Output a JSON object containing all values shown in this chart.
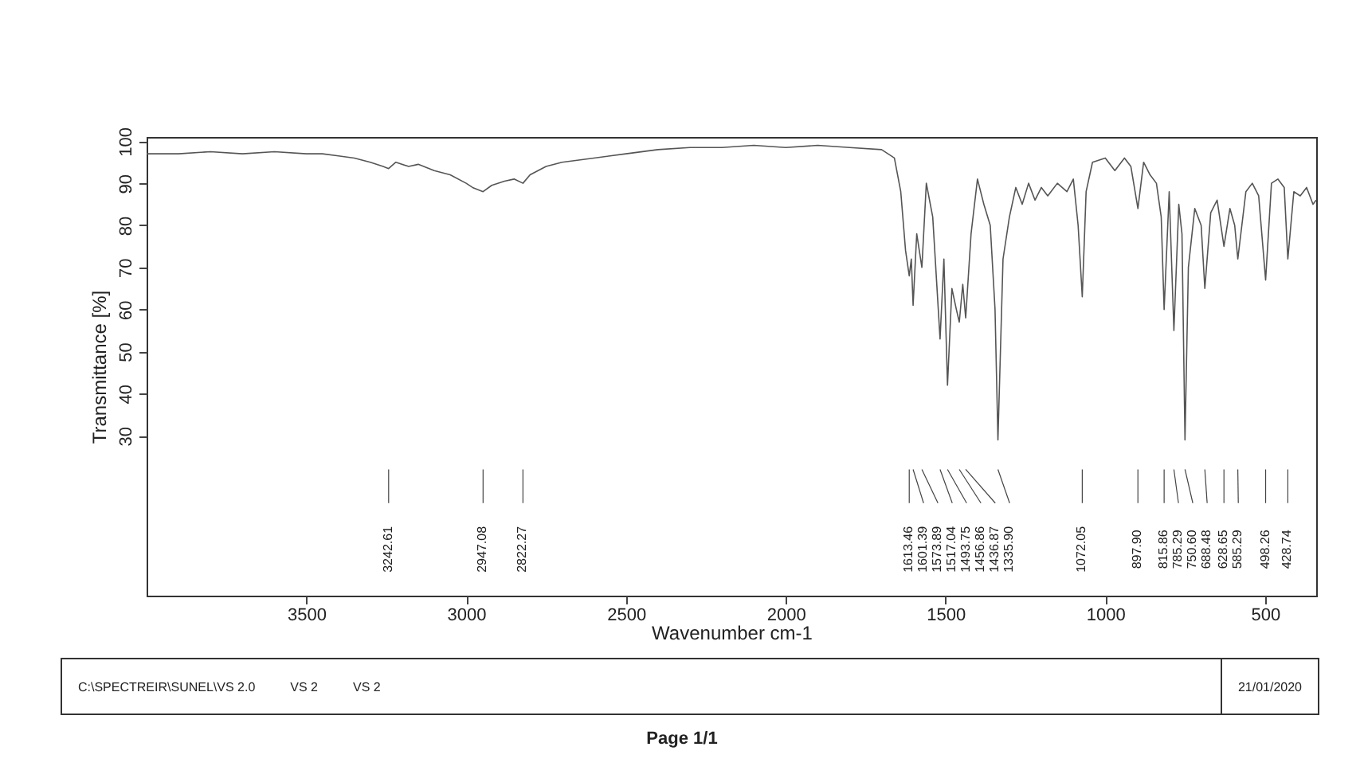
{
  "chart_data": {
    "type": "line",
    "xlabel": "Wavenumber cm-1",
    "ylabel": "Transmittance [%]",
    "xlim": [
      4000,
      340
    ],
    "ylim": [
      -8,
      101
    ],
    "xticks": [
      3500,
      3000,
      2500,
      2000,
      1500,
      1000,
      500
    ],
    "yticks": [
      30,
      40,
      50,
      60,
      70,
      80,
      90,
      100
    ],
    "grid": false,
    "marker": "none",
    "line_style": "solid",
    "series": [
      {
        "color": "#555555",
        "x": [
          4000,
          3900,
          3800,
          3700,
          3600,
          3500,
          3450,
          3400,
          3350,
          3300,
          3260,
          3242.61,
          3220,
          3180,
          3150,
          3100,
          3050,
          3000,
          2980,
          2947.08,
          2920,
          2880,
          2850,
          2822.27,
          2800,
          2750,
          2700,
          2600,
          2500,
          2400,
          2300,
          2200,
          2100,
          2000,
          1900,
          1800,
          1700,
          1660,
          1640,
          1625,
          1613.46,
          1607,
          1601.39,
          1590,
          1573.89,
          1560,
          1540,
          1517.04,
          1505,
          1493.75,
          1480,
          1466,
          1456.86,
          1446,
          1436.87,
          1420,
          1400,
          1380,
          1360,
          1345,
          1335.9,
          1320,
          1300,
          1280,
          1260,
          1240,
          1220,
          1200,
          1180,
          1150,
          1120,
          1100,
          1085,
          1072.05,
          1060,
          1040,
          1000,
          970,
          940,
          920,
          897.9,
          880,
          860,
          840,
          825,
          815.86,
          800,
          785.29,
          770,
          760,
          750.6,
          740,
          720,
          700,
          688.48,
          670,
          650,
          628.65,
          610,
          595,
          585.29,
          560,
          540,
          520,
          498.26,
          480,
          460,
          440,
          428.74,
          410,
          390,
          370,
          350,
          340
        ],
        "values": [
          97,
          97,
          97.5,
          97,
          97.5,
          97,
          97,
          96.5,
          96,
          95,
          94,
          93.5,
          95,
          94,
          94.5,
          93,
          92,
          90,
          89,
          88,
          89.5,
          90.5,
          91,
          90,
          92,
          94,
          95,
          96,
          97,
          98,
          98.5,
          98.5,
          99,
          98.5,
          99,
          98.5,
          98,
          96,
          88,
          74,
          68,
          72,
          61,
          78,
          70,
          90,
          82,
          53,
          72,
          42,
          65,
          60,
          57,
          66,
          58,
          78,
          91,
          85,
          80,
          60,
          29,
          72,
          82,
          89,
          85,
          90,
          86,
          89,
          87,
          90,
          88,
          91,
          80,
          63,
          88,
          95,
          96,
          93,
          96,
          94,
          84,
          95,
          92,
          90,
          82,
          60,
          88,
          55,
          85,
          78,
          29,
          70,
          84,
          80,
          65,
          83,
          86,
          75,
          84,
          80,
          72,
          88,
          90,
          87,
          67,
          90,
          91,
          89,
          72,
          88,
          87,
          89,
          85,
          86
        ]
      }
    ],
    "annotations": [
      "3242.61",
      "2947.08",
      "2822.27",
      "1613.46",
      "1601.39",
      "1573.89",
      "1517.04",
      "1493.75",
      "1456.86",
      "1436.87",
      "1335.90",
      "1072.05",
      "897.90",
      "815.86",
      "785.29",
      "750.60",
      "688.48",
      "628.65",
      "585.29",
      "498.26",
      "428.74",
      "C:\\SPECTREIR\\SUNEL\\VS 2.0",
      "VS 2",
      "VS 2",
      "21/01/2020",
      "Page 1/1"
    ]
  }
}
